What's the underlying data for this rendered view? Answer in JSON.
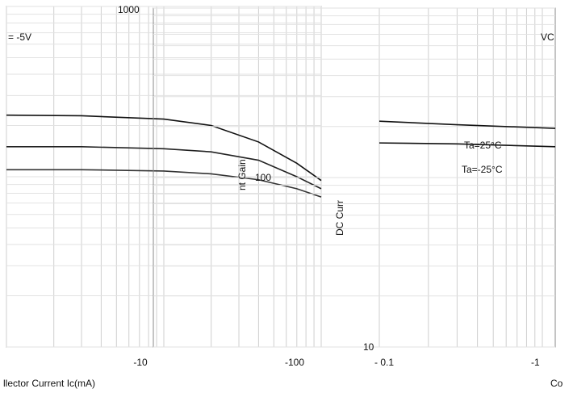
{
  "chart_data": [
    {
      "type": "line",
      "panel": "left",
      "title": "",
      "annotation": "= -5V",
      "xlabel": "llector Current   Ic(mA)",
      "x_scale": "log",
      "xlim": [
        1,
        100
      ],
      "x_tick_labels": [
        "-10",
        "-100"
      ],
      "y_top_label": "1000",
      "series": [
        {
          "values": [
            [
              1,
              230
            ],
            [
              3,
              228
            ],
            [
              10,
              218
            ],
            [
              20,
              200
            ],
            [
              40,
              160
            ],
            [
              70,
              120
            ],
            [
              100,
              95
            ]
          ]
        },
        {
          "values": [
            [
              1,
              150
            ],
            [
              3,
              150
            ],
            [
              10,
              146
            ],
            [
              20,
              140
            ],
            [
              40,
              125
            ],
            [
              70,
              100
            ],
            [
              100,
              85
            ]
          ]
        },
        {
          "values": [
            [
              1,
              110
            ],
            [
              3,
              110
            ],
            [
              10,
              108
            ],
            [
              20,
              104
            ],
            [
              40,
              96
            ],
            [
              70,
              85
            ],
            [
              100,
              76
            ]
          ]
        }
      ]
    },
    {
      "type": "line",
      "panel": "right",
      "title": "",
      "annotation": "VC",
      "ylabel": "DC Curr",
      "ylabel_partial": "nt Gain",
      "xlabel": "Co",
      "x_scale": "log",
      "y_scale": "log",
      "xlim": [
        0.1,
        1.2
      ],
      "ylim": [
        10,
        1000
      ],
      "x_tick_labels": [
        "- 0.1",
        "-1"
      ],
      "y_tick_labels": [
        "1000",
        "100",
        "10"
      ],
      "legend_labels": [
        "Ta=25°C",
        "Ta=-25°C"
      ],
      "series": [
        {
          "name": "Ta=25°C",
          "values": [
            [
              0.1,
              215
            ],
            [
              0.3,
              205
            ],
            [
              1.2,
              195
            ]
          ]
        },
        {
          "name": "Ta=-25°C",
          "values": [
            [
              0.1,
              160
            ],
            [
              0.3,
              158
            ],
            [
              1.2,
              152
            ]
          ]
        }
      ]
    }
  ]
}
